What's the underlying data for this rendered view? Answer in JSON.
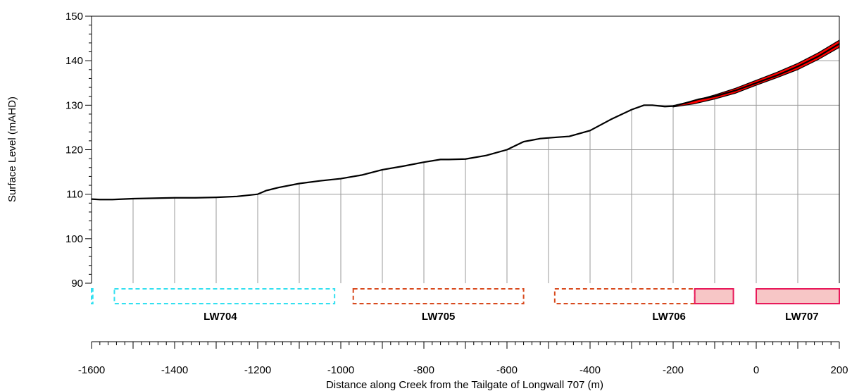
{
  "chart_data": {
    "type": "line",
    "title": "",
    "xlabel": "Distance along Creek from the Tailgate of Longwall 707 (m)",
    "ylabel": "Surface Level (mAHD)",
    "xlim": [
      -1600,
      200
    ],
    "ylim": [
      90,
      150
    ],
    "x_ticks": [
      -1600,
      -1400,
      -1200,
      -1000,
      -800,
      -600,
      -400,
      -200,
      0,
      200
    ],
    "y_ticks": [
      90,
      100,
      110,
      120,
      130,
      140,
      150
    ],
    "grid": "vertical lines every 100 m from the profile down to 90; horizontal lines above the profile",
    "series": [
      {
        "kind": "profile",
        "color": "#000000",
        "x": [
          -1600,
          -1580,
          -1550,
          -1500,
          -1450,
          -1400,
          -1350,
          -1300,
          -1250,
          -1200,
          -1180,
          -1150,
          -1100,
          -1050,
          -1000,
          -950,
          -900,
          -850,
          -800,
          -760,
          -740,
          -700,
          -650,
          -600,
          -560,
          -520,
          -480,
          -450,
          -400,
          -350,
          -300,
          -270,
          -250,
          -220,
          -200,
          -170,
          -140,
          -100,
          -50,
          0,
          50,
          100,
          150,
          200
        ],
        "y": [
          108.9,
          108.8,
          108.8,
          109.0,
          109.1,
          109.2,
          109.2,
          109.3,
          109.5,
          110.0,
          110.8,
          111.5,
          112.4,
          113.0,
          113.5,
          114.3,
          115.5,
          116.3,
          117.2,
          117.8,
          117.8,
          117.9,
          118.7,
          120.0,
          121.8,
          122.5,
          122.8,
          123.0,
          124.3,
          126.8,
          129.0,
          130.0,
          130.0,
          129.7,
          129.8,
          130.5,
          131.3,
          132.0,
          133.3,
          135.0,
          136.7,
          138.7,
          141.0,
          143.8
        ]
      },
      {
        "kind": "band",
        "color": "#ff0000",
        "x": [
          -200,
          -150,
          -100,
          -50,
          0,
          50,
          100,
          150,
          200
        ],
        "upper": [
          129.9,
          131.0,
          132.3,
          133.8,
          135.6,
          137.4,
          139.4,
          141.8,
          144.6
        ],
        "lower": [
          129.6,
          130.3,
          131.4,
          132.7,
          134.5,
          136.2,
          138.0,
          140.3,
          143.0
        ]
      }
    ],
    "panels": [
      {
        "name": "LW704",
        "label": "LW704",
        "color": "#33e0f0",
        "style": "dashed",
        "extents": [
          [
            -1600,
            -1597
          ],
          [
            -1545,
            -1015
          ]
        ],
        "label_x": -1290
      },
      {
        "name": "LW705",
        "label": "LW705",
        "color": "#d84a1e",
        "style": "dashed",
        "extents": [
          [
            -970,
            -560
          ]
        ],
        "label_x": -765
      },
      {
        "name": "LW706",
        "label": "LW706",
        "color": "#d84a1e",
        "style": "dashed",
        "extents": [
          [
            -485,
            -148
          ]
        ],
        "label_x": -210
      },
      {
        "name": "LW706-extracted",
        "label": "",
        "color": "#e8195a",
        "fill": "#f7c6c6",
        "style": "solid",
        "extents": [
          [
            -148,
            -55
          ]
        ]
      },
      {
        "name": "LW707",
        "label": "LW707",
        "color": "#e8195a",
        "fill": "#f7c6c6",
        "style": "solid",
        "extents": [
          [
            0,
            200
          ]
        ],
        "label_x": 110
      }
    ]
  }
}
